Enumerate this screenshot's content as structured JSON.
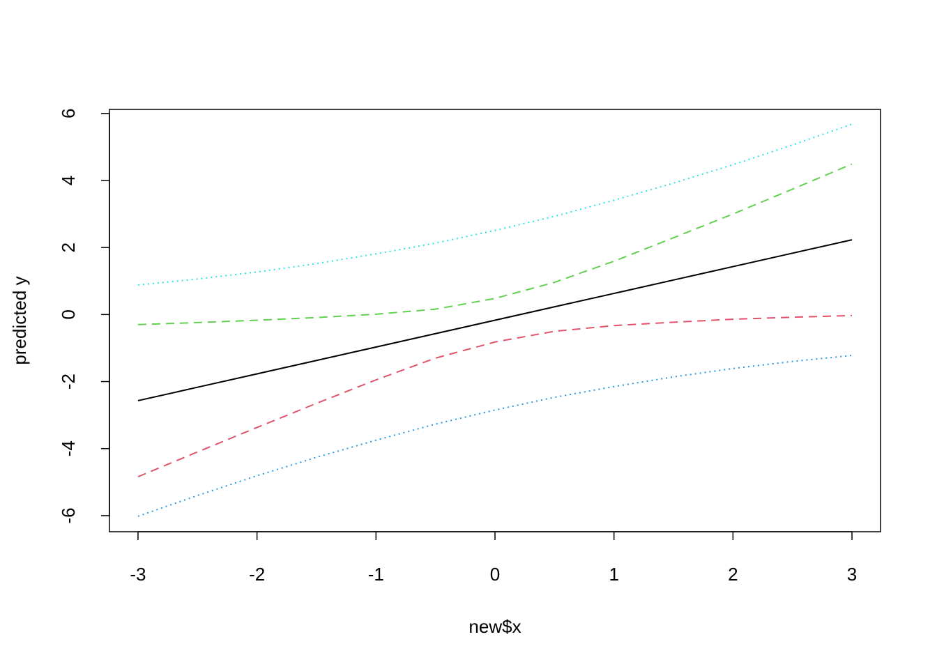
{
  "chart_data": {
    "type": "line",
    "x_label": "new$x",
    "y_label": "predicted y",
    "x": [
      -3,
      -2.5,
      -2,
      -1.5,
      -1,
      -0.5,
      0,
      0.5,
      1,
      1.5,
      2,
      2.5,
      3
    ],
    "series": [
      {
        "color": "#000000",
        "dash": "solid",
        "values": [
          -2.57,
          -2.17,
          -1.77,
          -1.37,
          -0.97,
          -0.57,
          -0.17,
          0.23,
          0.63,
          1.03,
          1.43,
          1.83,
          2.23
        ]
      },
      {
        "color": "#DF536B",
        "dash": "dashed",
        "values": [
          -4.84,
          -4.1,
          -3.37,
          -2.65,
          -1.95,
          -1.3,
          -0.82,
          -0.5,
          -0.33,
          -0.23,
          -0.14,
          -0.08,
          -0.03
        ]
      },
      {
        "color": "#61D04F",
        "dash": "dashed",
        "values": [
          -0.3,
          -0.24,
          -0.17,
          -0.09,
          0.01,
          0.16,
          0.48,
          0.96,
          1.59,
          2.29,
          3.0,
          3.74,
          4.49
        ]
      },
      {
        "color": "#2297E6",
        "dash": "dotted",
        "values": [
          -6.02,
          -5.4,
          -4.81,
          -4.26,
          -3.75,
          -3.27,
          -2.85,
          -2.47,
          -2.15,
          -1.86,
          -1.61,
          -1.4,
          -1.22
        ]
      },
      {
        "color": "#28E2E5",
        "dash": "dotted",
        "values": [
          0.88,
          1.06,
          1.27,
          1.52,
          1.81,
          2.13,
          2.51,
          2.93,
          3.41,
          3.92,
          4.47,
          5.06,
          5.68
        ]
      }
    ],
    "xlim": [
      -3.24,
      3.24
    ],
    "xticks": [
      -3,
      -2,
      -1,
      0,
      1,
      2,
      3
    ],
    "ylim": [
      -6.48,
      6.12
    ],
    "yticks": [
      -6,
      -4,
      -2,
      0,
      2,
      4,
      6
    ]
  }
}
